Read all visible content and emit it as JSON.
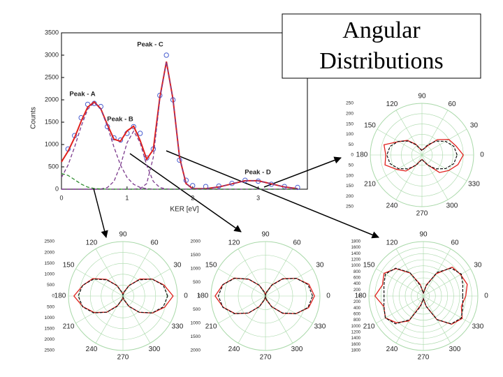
{
  "title_lines": [
    "Angular",
    "Distributions"
  ],
  "chart_data": [
    {
      "type": "line",
      "x_label": "KER [eV]",
      "y_label": "Counts",
      "xlim": [
        0,
        3.75
      ],
      "ylim": [
        0,
        3500
      ],
      "xticks": [
        0,
        1,
        2,
        3
      ],
      "yticks": [
        0,
        500,
        1000,
        1500,
        2000,
        2500,
        3000,
        3500
      ],
      "x": [
        0,
        0.1,
        0.2,
        0.3,
        0.4,
        0.5,
        0.6,
        0.7,
        0.8,
        0.9,
        1.0,
        1.1,
        1.2,
        1.3,
        1.4,
        1.5,
        1.6,
        1.7,
        1.8,
        1.9,
        2.0,
        2.2,
        2.4,
        2.6,
        2.8,
        3.0,
        3.2,
        3.4,
        3.6
      ],
      "annotations": [
        "Peak - A",
        "Peak - B",
        "Peak - C",
        "Peak - D"
      ],
      "series": [
        {
          "color": "#4a5fd0",
          "marker": "circle",
          "values": [
            null,
            900,
            1200,
            1600,
            1900,
            1920,
            1850,
            1400,
            1150,
            1100,
            1250,
            1400,
            1250,
            700,
            900,
            2100,
            3000,
            2000,
            650,
            200,
            80,
            60,
            70,
            130,
            200,
            180,
            110,
            60,
            40
          ]
        },
        {
          "color": "#e0201c",
          "style": "solid",
          "values": [
            613,
            848,
            1155,
            1522,
            1836,
            1953,
            1798,
            1446,
            1118,
            1074,
            1304,
            1409,
            1091,
            671,
            886,
            2052,
            2855,
            2015,
            711,
            126,
            13,
            13,
            50,
            121,
            189,
            189,
            121,
            50,
            13
          ]
        },
        {
          "color": "#7b3a8c",
          "style": "dashed",
          "values": [
            263,
            539,
            943,
            1408,
            1789,
            1938,
            1789,
            1408,
            943,
            539,
            263,
            109,
            39,
            11,
            0,
            0,
            0,
            0,
            0,
            0,
            0,
            0,
            0,
            0,
            0,
            0,
            0,
            0,
            0
          ]
        },
        {
          "color": "#7b3a8c",
          "style": "dashed",
          "values": [
            0,
            0,
            0,
            0,
            0,
            0,
            5,
            37,
            175,
            535,
            1041,
            1300,
            1041,
            535,
            175,
            37,
            5,
            0,
            0,
            0,
            0,
            0,
            0,
            0,
            0,
            0,
            0,
            0,
            0
          ]
        },
        {
          "color": "#7b3a8c",
          "style": "dashed",
          "values": [
            0,
            0,
            0,
            0,
            0,
            0,
            0,
            0,
            0,
            0,
            0,
            0,
            11,
            125,
            711,
            2015,
            2850,
            2015,
            711,
            125,
            11,
            0,
            0,
            0,
            0,
            0,
            0,
            0,
            0
          ]
        },
        {
          "color": "#7b3a8c",
          "style": "dashed",
          "values": [
            0,
            0,
            0,
            0,
            0,
            0,
            0,
            0,
            0,
            0,
            0,
            0,
            0,
            0,
            0,
            0,
            0,
            0,
            0,
            1,
            2,
            13,
            50,
            121,
            189,
            189,
            121,
            50,
            13
          ]
        },
        {
          "color": "#2e8b2e",
          "style": "dashed",
          "values": [
            350,
            309,
            212,
            114,
            47,
            15,
            4,
            1,
            0,
            0,
            0,
            0,
            0,
            0,
            0,
            0,
            0,
            0,
            0,
            0,
            0,
            0,
            0,
            0,
            0,
            0,
            0,
            0,
            0
          ]
        }
      ]
    },
    {
      "type": "polar",
      "theta": [
        0,
        15,
        30,
        45,
        60,
        75,
        90,
        105,
        120,
        135,
        150,
        165,
        180,
        195,
        210,
        225,
        240,
        255,
        270,
        285,
        300,
        315,
        330,
        345
      ],
      "angle_ticks": [
        0,
        30,
        60,
        90,
        120,
        150,
        180,
        210,
        240,
        270,
        300,
        330
      ],
      "rlim": [
        0,
        250
      ],
      "rticks": [
        0,
        50,
        100,
        150,
        200,
        250
      ],
      "series": [
        {
          "color": "#e0201c",
          "style": "solid",
          "values": [
            200,
            170,
            150,
            105,
            50,
            30,
            25,
            30,
            60,
            100,
            130,
            190,
            175,
            185,
            140,
            110,
            55,
            28,
            22,
            30,
            55,
            120,
            150,
            180
          ]
        },
        {
          "color": "#111111",
          "style": "dashed",
          "values": [
            170,
            160,
            132,
            95,
            57,
            30,
            20,
            30,
            57,
            95,
            132,
            160,
            170,
            160,
            132,
            95,
            57,
            30,
            20,
            30,
            57,
            95,
            132,
            160
          ]
        }
      ]
    },
    {
      "type": "polar",
      "theta": [
        0,
        15,
        30,
        45,
        60,
        75,
        90,
        105,
        120,
        135,
        150,
        165,
        180,
        195,
        210,
        225,
        240,
        255,
        270,
        285,
        300,
        315,
        330,
        345
      ],
      "angle_ticks": [
        0,
        30,
        60,
        90,
        120,
        150,
        180,
        210,
        240,
        270,
        300,
        330
      ],
      "rlim": [
        0,
        2500
      ],
      "rticks": [
        0,
        500,
        1000,
        1500,
        2000,
        2500
      ],
      "series": [
        {
          "color": "#e0201c",
          "style": "solid",
          "values": [
            2300,
            1950,
            1550,
            1100,
            550,
            200,
            80,
            180,
            560,
            1080,
            1600,
            1900,
            2250,
            1900,
            1520,
            1050,
            520,
            190,
            70,
            190,
            540,
            1060,
            1560,
            1980
          ]
        },
        {
          "color": "#111111",
          "style": "dashed",
          "values": [
            2050,
            1916,
            1550,
            1050,
            550,
            184,
            50,
            184,
            550,
            1050,
            1550,
            1916,
            2050,
            1916,
            1550,
            1050,
            550,
            184,
            50,
            184,
            550,
            1050,
            1550,
            1916
          ]
        }
      ]
    },
    {
      "type": "polar",
      "theta": [
        0,
        15,
        30,
        45,
        60,
        75,
        90,
        105,
        120,
        135,
        150,
        165,
        180,
        195,
        210,
        225,
        240,
        255,
        270,
        285,
        300,
        315,
        330,
        345
      ],
      "angle_ticks": [
        0,
        30,
        60,
        90,
        120,
        150,
        180,
        210,
        240,
        270,
        300,
        330
      ],
      "rlim": [
        0,
        2000
      ],
      "rticks": [
        0,
        500,
        1000,
        1500,
        2000
      ],
      "series": [
        {
          "color": "#e0201c",
          "style": "solid",
          "values": [
            1800,
            1650,
            1300,
            900,
            470,
            150,
            40,
            150,
            460,
            870,
            1320,
            1620,
            1850,
            1600,
            1290,
            890,
            440,
            140,
            35,
            160,
            450,
            900,
            1290,
            1640
          ]
        },
        {
          "color": "#111111",
          "style": "dashed",
          "values": [
            1730,
            1616,
            1305,
            880,
            455,
            144,
            30,
            144,
            455,
            880,
            1305,
            1616,
            1730,
            1616,
            1305,
            880,
            455,
            144,
            30,
            144,
            455,
            880,
            1305,
            1616
          ]
        }
      ]
    },
    {
      "type": "polar",
      "theta": [
        0,
        15,
        30,
        45,
        60,
        75,
        90,
        105,
        120,
        135,
        150,
        165,
        180,
        195,
        210,
        225,
        240,
        255,
        270,
        285,
        300,
        315,
        330,
        345
      ],
      "angle_ticks": [
        0,
        30,
        60,
        90,
        120,
        150,
        180,
        210,
        240,
        270,
        300,
        330
      ],
      "rlim": [
        0,
        1800
      ],
      "rticks": [
        0,
        200,
        400,
        600,
        800,
        1000,
        1200,
        1400,
        1600,
        1800
      ],
      "series": [
        {
          "color": "#e0201c",
          "style": "solid",
          "values": [
            1400,
            1500,
            1420,
            1350,
            850,
            380,
            100,
            400,
            880,
            1280,
            1500,
            1400,
            1600,
            1350,
            1450,
            1250,
            950,
            300,
            90,
            350,
            900,
            1320,
            1480,
            1300
          ]
        },
        {
          "color": "#111111",
          "style": "dashed",
          "values": [
            1300,
            1350,
            1450,
            1300,
            900,
            350,
            80,
            350,
            900,
            1300,
            1450,
            1350,
            1300,
            1350,
            1450,
            1300,
            900,
            350,
            80,
            350,
            900,
            1300,
            1450,
            1350
          ]
        }
      ]
    }
  ]
}
